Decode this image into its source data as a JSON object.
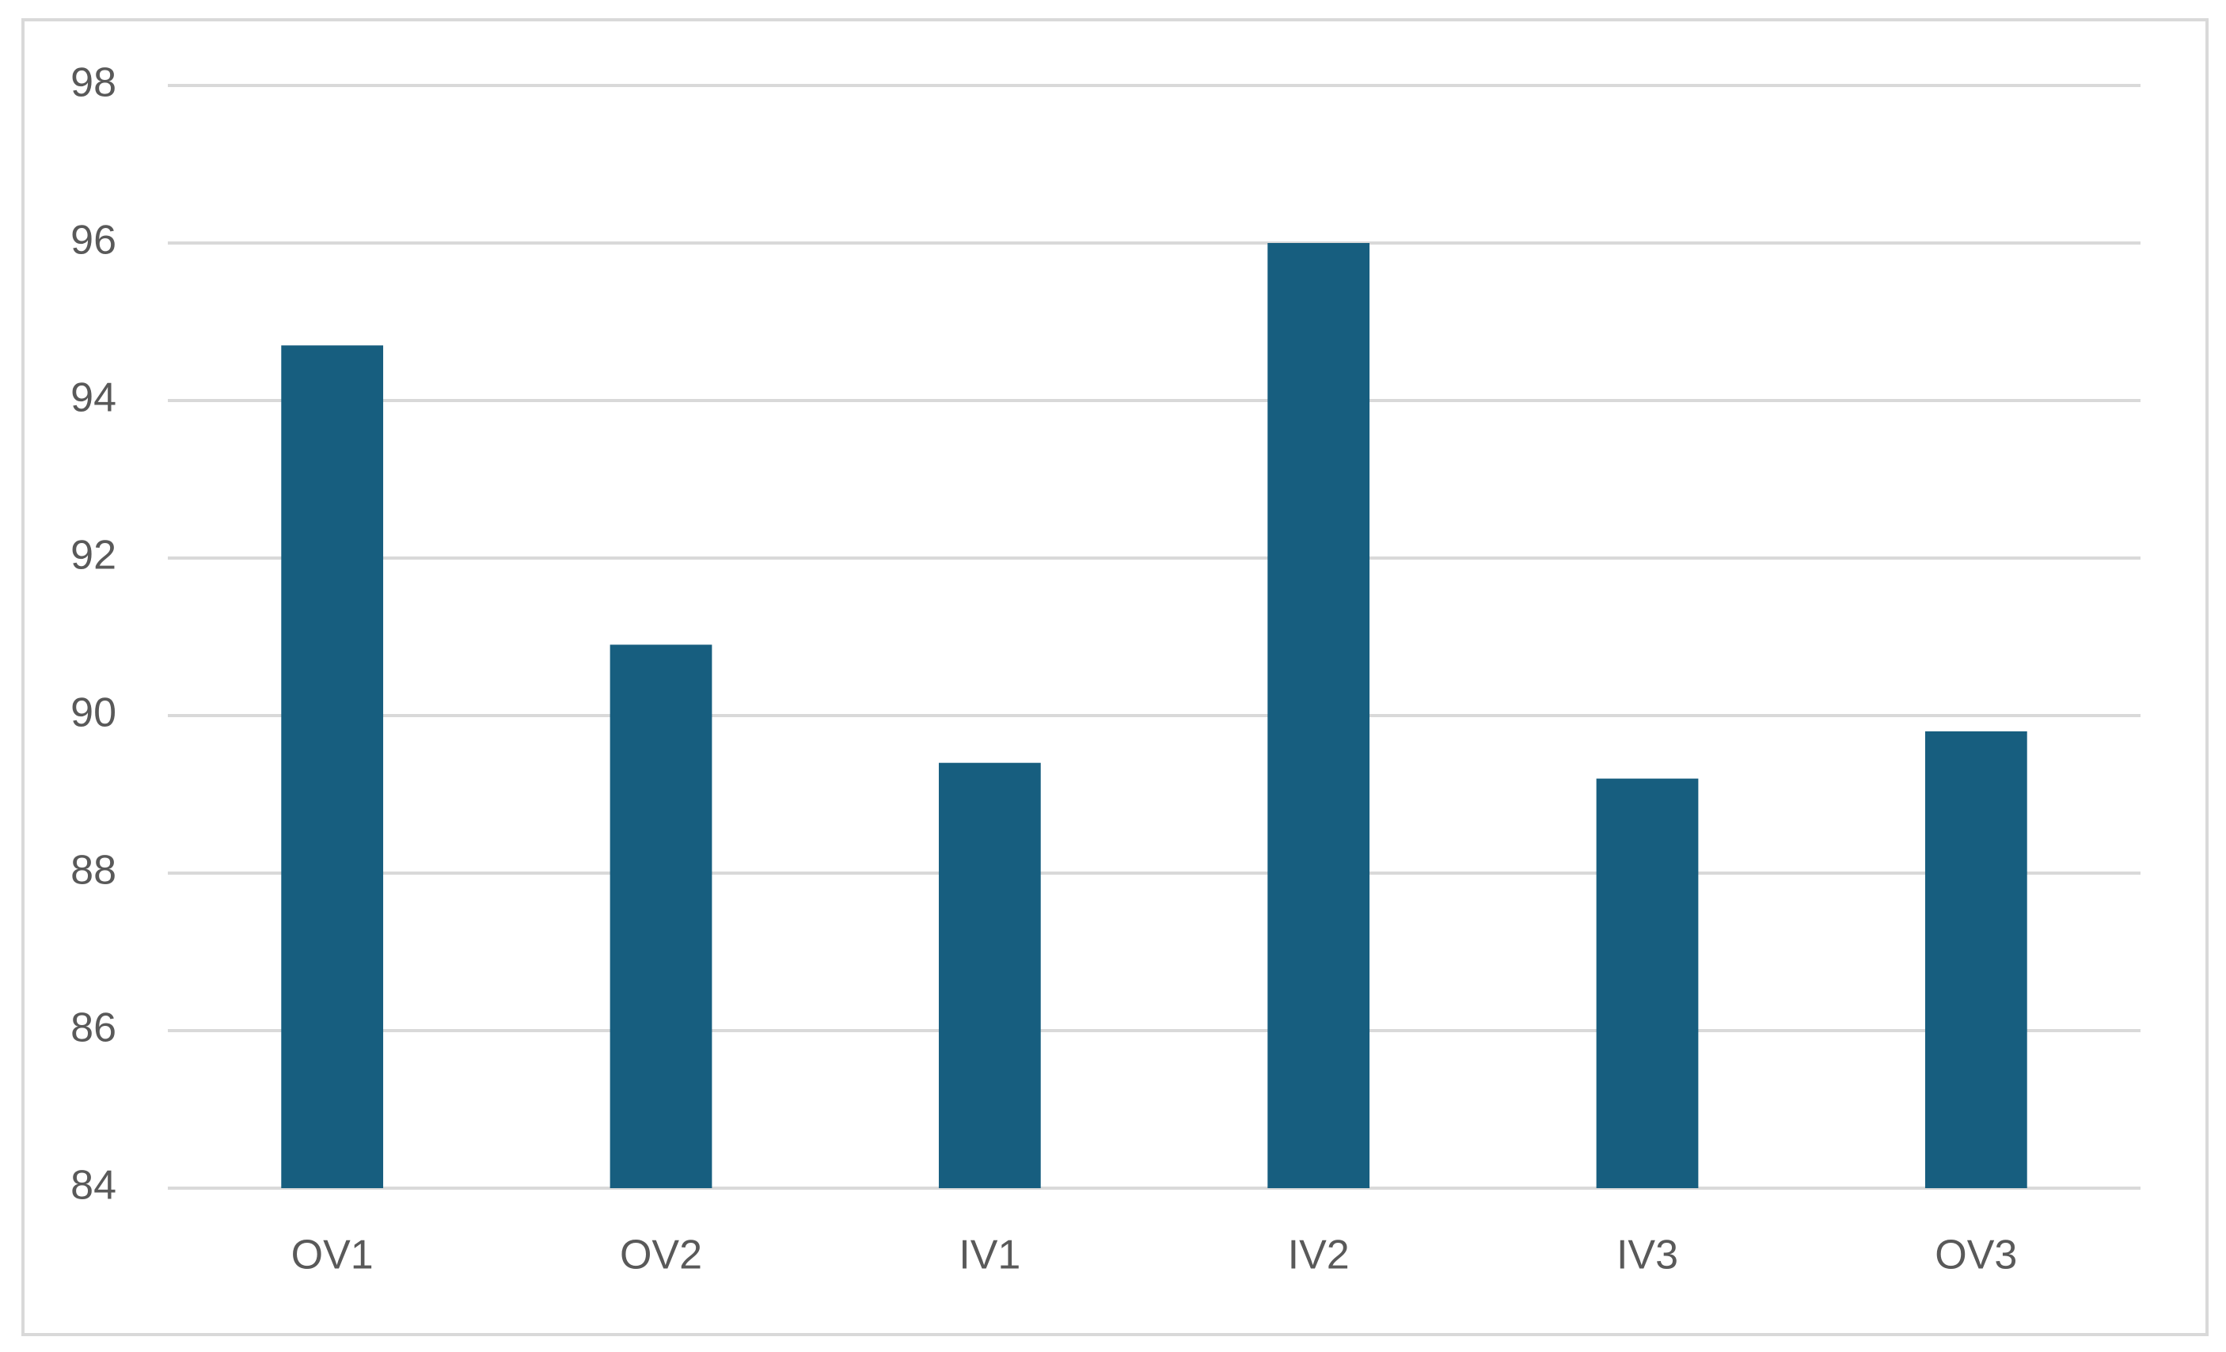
{
  "chart_data": {
    "type": "bar",
    "categories": [
      "OV1",
      "OV2",
      "IV1",
      "IV2",
      "IV3",
      "OV3"
    ],
    "values": [
      94.7,
      90.9,
      89.4,
      96.0,
      89.2,
      89.8
    ],
    "color": "#175e7f",
    "ylim": [
      84,
      98
    ],
    "yticks": [
      84,
      86,
      88,
      90,
      92,
      94,
      96,
      98
    ],
    "grid": true
  }
}
